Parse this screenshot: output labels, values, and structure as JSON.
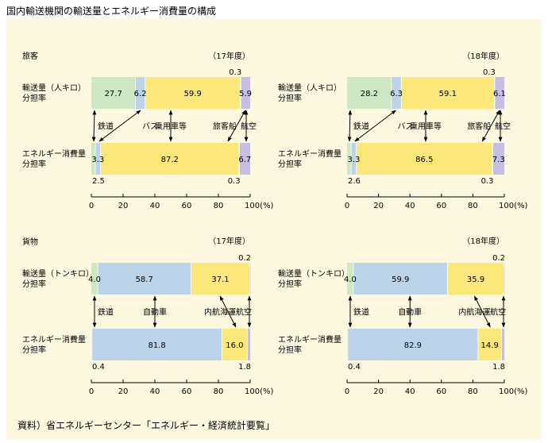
{
  "title": "国内輸送機関の輸送量とエネルギー消費量の構成",
  "source": "資料）省エネルギーセンター「エネルギー・経済統計要覧」",
  "colors": {
    "rail": "#cce8c4",
    "bus": "#bcd4ea",
    "car": "#fbe77a",
    "ship": "#f7c3b9",
    "air": "#c4bfe3",
    "truck": "#bcd4ea",
    "background": "#fdf8e0"
  },
  "axis": {
    "ticks": [
      "0",
      "20",
      "40",
      "60",
      "80",
      "100(%)"
    ]
  },
  "chart_data": [
    {
      "type": "bar",
      "section_label": "旅客",
      "year_label": "（17年度）",
      "transport_label": "輸送量（人キロ）\n分担率",
      "energy_label": "エネルギー消費量\n分担率",
      "xlim": [
        0,
        100
      ],
      "categories": [
        "鉄道",
        "バス",
        "乗用車等",
        "旅客船",
        "航空"
      ],
      "transport": [
        27.7,
        6.2,
        59.9,
        0.3,
        5.9
      ],
      "energy": [
        2.5,
        3.3,
        87.2,
        0.3,
        6.7
      ],
      "transport_labels": [
        "27.7",
        "6.2",
        "59.9",
        "0.3",
        "5.9"
      ],
      "energy_labels": [
        "2.5",
        "3.3",
        "87.2",
        "0.3",
        "6.7"
      ]
    },
    {
      "type": "bar",
      "section_label": "",
      "year_label": "（18年度）",
      "transport_label": "輸送量（人キロ）\n分担率",
      "energy_label": "エネルギー消費量\n分担率",
      "xlim": [
        0,
        100
      ],
      "categories": [
        "鉄道",
        "バス",
        "乗用車等",
        "旅客船",
        "航空"
      ],
      "transport": [
        28.2,
        6.3,
        59.1,
        0.3,
        6.1
      ],
      "energy": [
        2.6,
        3.3,
        86.5,
        0.3,
        7.3
      ],
      "transport_labels": [
        "28.2",
        "6.3",
        "59.1",
        "0.3",
        "6.1"
      ],
      "energy_labels": [
        "2.6",
        "3.3",
        "86.5",
        "0.3",
        "7.3"
      ]
    },
    {
      "type": "bar",
      "section_label": "貨物",
      "year_label": "（17年度）",
      "transport_label": "輸送量（トンキロ）\n分担率",
      "energy_label": "エネルギー消費量\n分担率",
      "xlim": [
        0,
        100
      ],
      "categories": [
        "鉄道",
        "自動車",
        "内航海運",
        "航空"
      ],
      "transport": [
        4.0,
        58.7,
        37.1,
        0.2
      ],
      "energy": [
        0.4,
        81.8,
        16.0,
        1.8
      ],
      "transport_labels": [
        "4.0",
        "58.7",
        "37.1",
        "0.2"
      ],
      "energy_labels": [
        "0.4",
        "81.8",
        "16.0",
        "1.8"
      ]
    },
    {
      "type": "bar",
      "section_label": "",
      "year_label": "（18年度）",
      "transport_label": "輸送量（トンキロ）\n分担率",
      "energy_label": "エネルギー消費量\n分担率",
      "xlim": [
        0,
        100
      ],
      "categories": [
        "鉄道",
        "自動車",
        "内航海運",
        "航空"
      ],
      "transport": [
        4.0,
        59.9,
        35.9,
        0.2
      ],
      "energy": [
        0.4,
        82.9,
        14.9,
        1.8
      ],
      "transport_labels": [
        "4.0",
        "59.9",
        "35.9",
        "0.2"
      ],
      "energy_labels": [
        "0.4",
        "82.9",
        "14.9",
        "1.8"
      ]
    }
  ]
}
